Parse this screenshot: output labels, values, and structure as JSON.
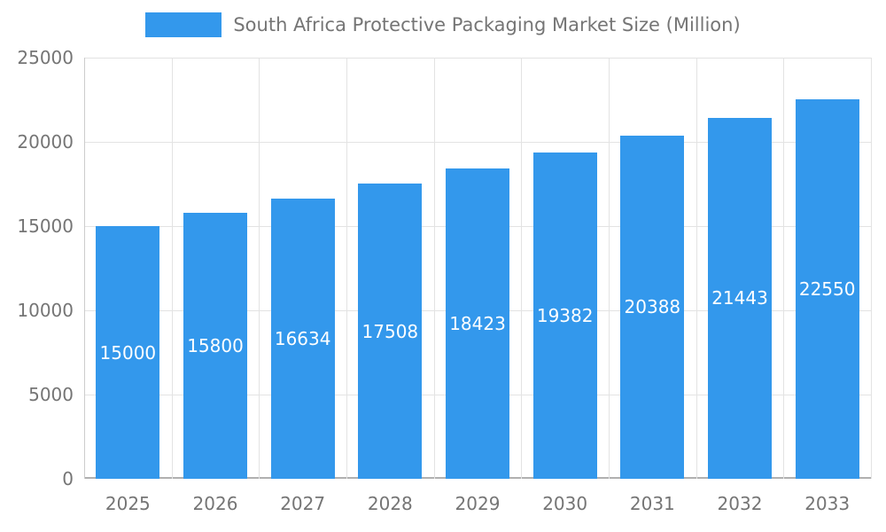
{
  "chart_data": {
    "type": "bar",
    "title": "South Africa Protective Packaging Market Size (Million)",
    "categories": [
      "2025",
      "2026",
      "2027",
      "2028",
      "2029",
      "2030",
      "2031",
      "2032",
      "2033"
    ],
    "values": [
      15000,
      15800,
      16634,
      17508,
      18423,
      19382,
      20388,
      21443,
      22550
    ],
    "xlabel": "",
    "ylabel": "",
    "ylim": [
      0,
      25000
    ],
    "yticks": [
      0,
      5000,
      10000,
      15000,
      20000,
      25000
    ],
    "grid": "on",
    "legend_position": "top",
    "bar_color": "#3398EC",
    "value_label_color": "#FFFFFF",
    "axis_text_color": "#757575",
    "gridline_color": "#E3E3E3",
    "baseline_color": "#B0B0B0",
    "axis_line_color": "#CCCCCC"
  }
}
